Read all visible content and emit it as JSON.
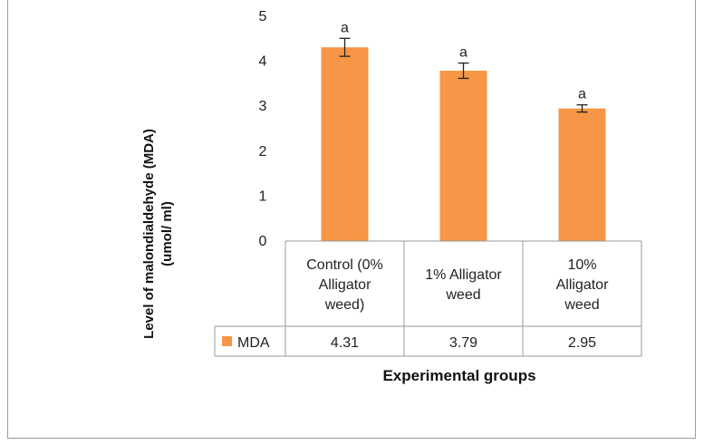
{
  "chart_data": {
    "type": "bar",
    "categories": [
      [
        "Control (0%",
        "Alligator",
        "weed)"
      ],
      [
        "1% Alligator",
        "weed"
      ],
      [
        "10%",
        "Alligator",
        "weed"
      ]
    ],
    "series": [
      {
        "name": "MDA",
        "values": [
          4.31,
          3.79,
          2.95
        ],
        "color": "#f79646"
      }
    ],
    "error": [
      0.2,
      0.17,
      0.08
    ],
    "significance": [
      "a",
      "a",
      "a"
    ],
    "data_table_values": [
      "4.31",
      "3.79",
      "2.95"
    ],
    "ylabel": [
      "Level of malondialdehyde (MDA)",
      "(umol/ ml)"
    ],
    "xlabel": "Experimental groups",
    "ylim": [
      0,
      5
    ],
    "yticks": [
      0,
      1,
      2,
      3,
      4,
      5
    ],
    "grid": false,
    "legend": "data table"
  }
}
